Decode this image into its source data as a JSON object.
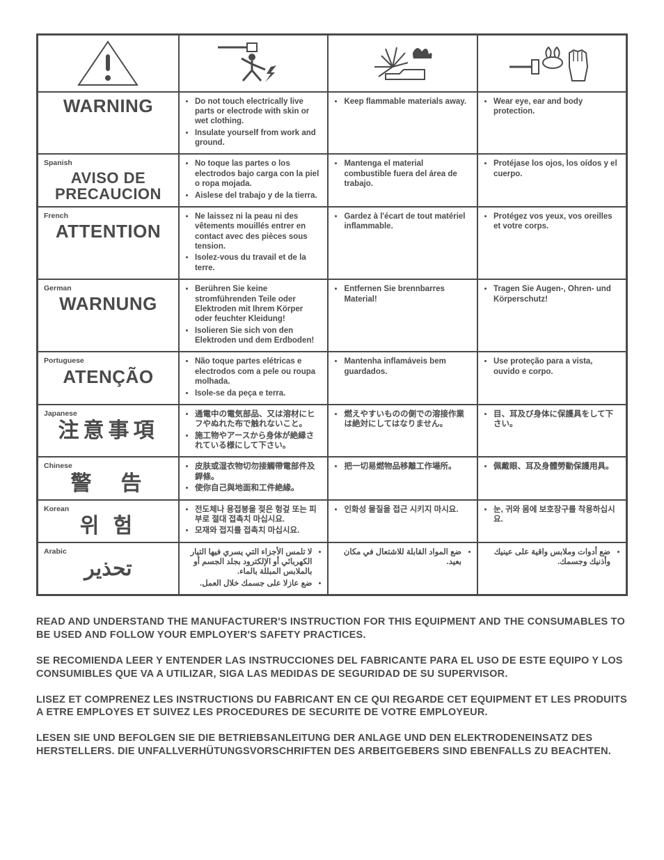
{
  "colors": {
    "stroke": "#4a4a4a",
    "bg": "#ffffff"
  },
  "icons": {
    "a": "exclaim-triangle",
    "b": "electric-shock",
    "c": "spark-fire",
    "d": "goggles-glove"
  },
  "rows": [
    {
      "lang": "",
      "word": "WARNING",
      "c1": [
        "Do not touch electrically live parts or electrode with skin or wet clothing.",
        "Insulate yourself from work and ground."
      ],
      "c2": [
        "Keep flammable materials away."
      ],
      "c3": [
        "Wear eye, ear and body protection."
      ]
    },
    {
      "lang": "Spanish",
      "word": "AVISO DE PRECAUCION",
      "c1": [
        "No toque las partes o los electrodos bajo carga con la piel o ropa mojada.",
        "Aislese del trabajo y de la tierra."
      ],
      "c2": [
        "Mantenga el material combustible fuera del área de trabajo."
      ],
      "c3": [
        "Protéjase los ojos, los oídos y el cuerpo."
      ]
    },
    {
      "lang": "French",
      "word": "ATTENTION",
      "c1": [
        "Ne laissez ni la peau ni des vêtements mouillés entrer en contact avec des pièces sous tension.",
        "Isolez-vous du travail et de la terre."
      ],
      "c2": [
        "Gardez à l'écart de tout matériel inflammable."
      ],
      "c3": [
        "Protégez vos yeux, vos oreilles et votre corps."
      ]
    },
    {
      "lang": "German",
      "word": "WARNUNG",
      "c1": [
        "Berühren Sie keine stromführenden Teile oder Elektroden mit Ihrem Körper oder feuchter Kleidung!",
        "Isolieren Sie sich von den Elektroden und dem Erdboden!"
      ],
      "c2": [
        "Entfernen Sie brennbarres Material!"
      ],
      "c3": [
        "Tragen Sie Augen-, Ohren- und Körperschutz!"
      ]
    },
    {
      "lang": "Portuguese",
      "word": "ATENÇÃO",
      "c1": [
        "Não toque partes elétricas e electrodos com a pele ou roupa molhada.",
        "Isole-se da peça e terra."
      ],
      "c2": [
        "Mantenha inflamáveis bem guardados."
      ],
      "c3": [
        "Use proteção para a vista, ouvido e corpo."
      ]
    },
    {
      "lang": "Japanese",
      "word": "注意事項",
      "cjk": true,
      "c1": [
        "通電中の電気部品、又は溶材にヒフやぬれた布で触れないこと。",
        "施工物やアースから身体が絶縁されている様にして下さい。"
      ],
      "c2": [
        "燃えやすいものの側での溶接作業は絶対にしてはなりません。"
      ],
      "c3": [
        "目、耳及び身体に保護具をして下さい。"
      ]
    },
    {
      "lang": "Chinese",
      "word": "警　告",
      "cjk": true,
      "c1": [
        "皮肤或湿衣物切勿接觸帶電部件及銲條。",
        "使你自己與地面和工件絶緣。"
      ],
      "c2": [
        "把一切易燃物品移離工作場所。"
      ],
      "c3": [
        "佩戴眼、耳及身體勞動保護用具。"
      ]
    },
    {
      "lang": "Korean",
      "word": "위 험",
      "cjk": true,
      "c1": [
        "전도체나 용접봉을 젖은 헝겊 또는 피부로 절대 접촉치 마십시요.",
        "모재와 접지를 접촉치 마십시요."
      ],
      "c2": [
        "인화성 물질을 접근 시키지 마시요."
      ],
      "c3": [
        "눈, 귀와 몸에 보호장구를 착용하십시요."
      ]
    },
    {
      "lang": "Arabic",
      "word": "تحذير",
      "rtl": true,
      "c1": [
        "لا تلمس الأجزاء التي يسري فيها التيار الكهربائي أو الإلكترود بجلد الجسم أو بالملابس المبللة بالماء.",
        "ضع عازلا على جسمك خلال العمل."
      ],
      "c2": [
        "ضع المواد القابلة للاشتعال في مكان بعيد."
      ],
      "c3": [
        "ضع أدوات وملابس واقية على عينيك وأذنيك وجسمك."
      ]
    }
  ],
  "footer": [
    "READ AND UNDERSTAND THE MANUFACTURER'S INSTRUCTION FOR THIS EQUIPMENT AND THE CONSUMABLES TO BE USED AND FOLLOW YOUR EMPLOYER'S SAFETY PRACTICES.",
    "SE RECOMIENDA LEER Y ENTENDER LAS INSTRUCCIONES DEL FABRICANTE PARA EL USO DE ESTE EQUIPO Y LOS CONSUMIBLES QUE VA A UTILIZAR, SIGA LAS MEDIDAS DE SEGURIDAD DE SU SUPERVISOR.",
    "LISEZ ET COMPRENEZ LES INSTRUCTIONS DU FABRICANT EN CE QUI REGARDE CET EQUIPMENT ET LES PRODUITS A ETRE EMPLOYES ET SUIVEZ LES PROCEDURES DE SECURITE DE VOTRE EMPLOYEUR.",
    "LESEN SIE UND BEFOLGEN SIE DIE BETRIEBSANLEITUNG DER ANLAGE UND DEN ELEKTRODENEINSATZ DES HERSTELLERS. DIE UNFALLVERHÜTUNGSVORSCHRIFTEN DES ARBEITGEBERS SIND EBENFALLS ZU BEACHTEN."
  ]
}
